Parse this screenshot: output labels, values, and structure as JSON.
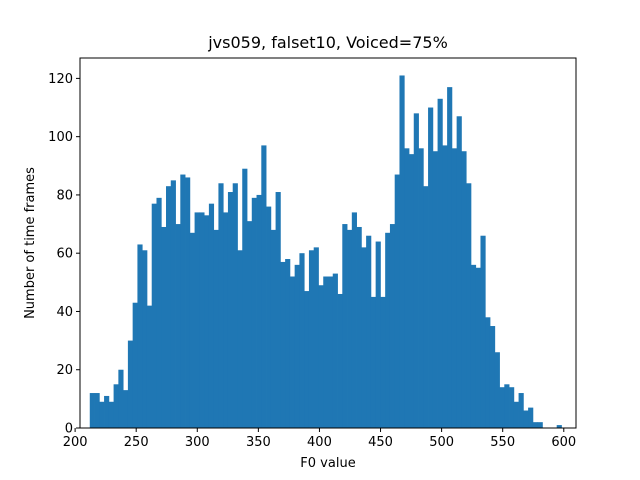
{
  "chart_data": {
    "type": "bar",
    "title": "jvs059, falset10, Voiced=75%",
    "xlabel": "F0 value",
    "ylabel": "Number of time frames",
    "xlim": [
      204,
      610
    ],
    "ylim": [
      0,
      127
    ],
    "xticks": [
      200,
      250,
      300,
      350,
      400,
      450,
      500,
      550,
      600
    ],
    "yticks": [
      0,
      20,
      40,
      60,
      80,
      100,
      120
    ],
    "grid": false,
    "legend": "none",
    "bar_color": "#1f77b4",
    "bin_start": 212,
    "bin_width": 3.9,
    "values": [
      12,
      12,
      9,
      11,
      9,
      15,
      20,
      13,
      30,
      43,
      63,
      61,
      42,
      77,
      79,
      69,
      83,
      85,
      70,
      87,
      86,
      67,
      74,
      74,
      73,
      77,
      68,
      84,
      74,
      81,
      84,
      61,
      89,
      71,
      79,
      80,
      97,
      76,
      68,
      81,
      57,
      58,
      52,
      56,
      60,
      47,
      61,
      62,
      49,
      52,
      52,
      53,
      46,
      70,
      68,
      74,
      69,
      62,
      66,
      45,
      64,
      45,
      67,
      70,
      87,
      121,
      96,
      94,
      108,
      96,
      83,
      110,
      95,
      113,
      97,
      117,
      96,
      107,
      95,
      84,
      56,
      55,
      66,
      38,
      35,
      26,
      14,
      15,
      14,
      9,
      12,
      6,
      7,
      2,
      2,
      0,
      0,
      0,
      1
    ]
  }
}
